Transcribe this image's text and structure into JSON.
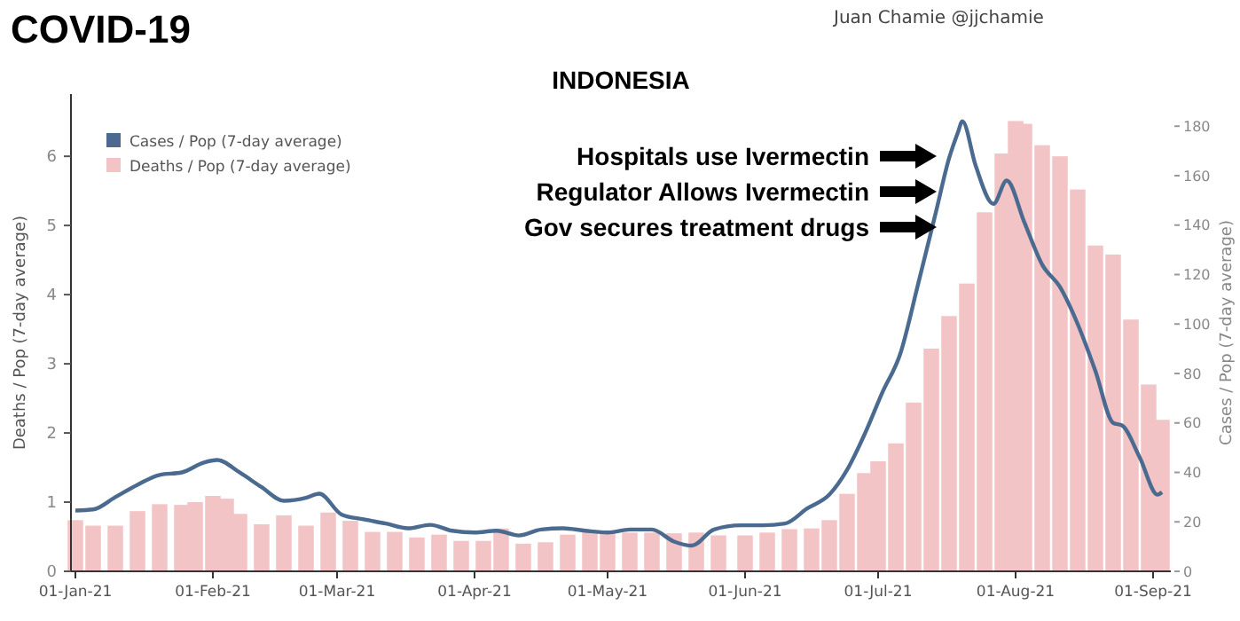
{
  "chart_data": {
    "type": "bar",
    "title": "COVID-19",
    "subtitle": "INDONESIA",
    "ylabel": "Deaths / Pop (7-day average)",
    "y2label": "Cases / Pop (7-day average)",
    "annotations": [
      "Juan Chamie @jjchamie",
      "Hospitals use Ivermectin",
      "Regulator Allows Ivermectin",
      "Gov secures treatment drugs"
    ],
    "xlim": [
      "2020-12-31",
      "2021-09-05"
    ],
    "xticks": [
      {
        "value": "2021-01-01",
        "label": "01-Jan-21"
      },
      {
        "value": "2021-02-01",
        "label": "01-Feb-21"
      },
      {
        "value": "2021-03-01",
        "label": "01-Mar-21"
      },
      {
        "value": "2021-04-01",
        "label": "01-Apr-21"
      },
      {
        "value": "2021-05-01",
        "label": "01-May-21"
      },
      {
        "value": "2021-06-01",
        "label": "01-Jun-21"
      },
      {
        "value": "2021-07-01",
        "label": "01-Jul-21"
      },
      {
        "value": "2021-08-01",
        "label": "01-Aug-21"
      },
      {
        "value": "2021-09-01",
        "label": "01-Sep-21"
      }
    ],
    "ylim": [
      0,
      6.9
    ],
    "yticks": [
      0,
      1,
      2,
      3,
      4,
      5,
      6
    ],
    "y2lim": [
      0,
      193
    ],
    "y2ticks": [
      0,
      20,
      40,
      60,
      80,
      100,
      120,
      140,
      160,
      180
    ],
    "legend": "top left",
    "grid": false,
    "series": [
      {
        "name": "Cases / Pop (7-day average)",
        "type": "line",
        "axis": "y2",
        "color": "#4a6a8f",
        "marker": "none",
        "line_style": "solid",
        "x": [
          "2021-01-01",
          "2021-01-05",
          "2021-01-10",
          "2021-01-15",
          "2021-01-20",
          "2021-01-25",
          "2021-01-30",
          "2021-02-02",
          "2021-02-07",
          "2021-02-12",
          "2021-02-17",
          "2021-02-22",
          "2021-02-25",
          "2021-03-02",
          "2021-03-07",
          "2021-03-12",
          "2021-03-17",
          "2021-03-22",
          "2021-03-27",
          "2021-04-01",
          "2021-04-06",
          "2021-04-11",
          "2021-04-16",
          "2021-04-21",
          "2021-04-26",
          "2021-05-01",
          "2021-05-06",
          "2021-05-11",
          "2021-05-16",
          "2021-05-20",
          "2021-05-25",
          "2021-05-31",
          "2021-06-05",
          "2021-06-10",
          "2021-06-15",
          "2021-06-20",
          "2021-06-24",
          "2021-06-28",
          "2021-07-02",
          "2021-07-06",
          "2021-07-10",
          "2021-07-14",
          "2021-07-17",
          "2021-07-19",
          "2021-07-20",
          "2021-07-23",
          "2021-07-27",
          "2021-07-30",
          "2021-08-03",
          "2021-08-07",
          "2021-08-11",
          "2021-08-15",
          "2021-08-19",
          "2021-08-23",
          "2021-08-25",
          "2021-08-29",
          "2021-09-02",
          "2021-09-03"
        ],
        "values": [
          24.6,
          25,
          30,
          35,
          39,
          40,
          44,
          45,
          40,
          34,
          28.5,
          29.7,
          31.4,
          23,
          21,
          19.3,
          17.4,
          18.8,
          16.4,
          15.7,
          16.4,
          14.5,
          16.9,
          17.4,
          16.4,
          15.7,
          16.9,
          16.9,
          12,
          10.4,
          16.9,
          18.6,
          18.6,
          19.3,
          25.4,
          31,
          41,
          55.6,
          72.5,
          88,
          116,
          145,
          167,
          177.5,
          182,
          164,
          148.6,
          158,
          141,
          124,
          115,
          100,
          81,
          60,
          59,
          46,
          31,
          32
        ]
      },
      {
        "name": "Deaths / Pop (7-day average)",
        "axis": "y",
        "color": "#f2c4c6",
        "x": [
          "2021-01-01",
          "2021-01-05",
          "2021-01-10",
          "2021-01-15",
          "2021-01-20",
          "2021-01-25",
          "2021-01-28",
          "2021-02-01",
          "2021-02-04",
          "2021-02-07",
          "2021-02-12",
          "2021-02-17",
          "2021-02-22",
          "2021-02-27",
          "2021-03-04",
          "2021-03-09",
          "2021-03-14",
          "2021-03-19",
          "2021-03-24",
          "2021-03-29",
          "2021-04-03",
          "2021-04-07",
          "2021-04-12",
          "2021-04-17",
          "2021-04-22",
          "2021-04-27",
          "2021-05-01",
          "2021-05-06",
          "2021-05-11",
          "2021-05-16",
          "2021-05-21",
          "2021-05-26",
          "2021-06-01",
          "2021-06-06",
          "2021-06-11",
          "2021-06-16",
          "2021-06-20",
          "2021-06-24",
          "2021-06-28",
          "2021-07-01",
          "2021-07-05",
          "2021-07-09",
          "2021-07-13",
          "2021-07-17",
          "2021-07-21",
          "2021-07-25",
          "2021-07-29",
          "2021-08-01",
          "2021-08-03",
          "2021-08-07",
          "2021-08-11",
          "2021-08-15",
          "2021-08-19",
          "2021-08-23",
          "2021-08-27",
          "2021-08-31",
          "2021-09-03"
        ],
        "values": [
          0.74,
          0.66,
          0.66,
          0.87,
          0.97,
          0.96,
          1.0,
          1.09,
          1.05,
          0.83,
          0.68,
          0.81,
          0.66,
          0.85,
          0.73,
          0.57,
          0.57,
          0.49,
          0.53,
          0.44,
          0.44,
          0.62,
          0.4,
          0.42,
          0.53,
          0.57,
          0.57,
          0.56,
          0.56,
          0.55,
          0.56,
          0.52,
          0.52,
          0.56,
          0.61,
          0.62,
          0.74,
          1.12,
          1.42,
          1.59,
          1.85,
          2.44,
          3.22,
          3.69,
          4.16,
          5.19,
          6.04,
          6.51,
          6.47,
          6.16,
          6.0,
          5.52,
          4.71,
          4.58,
          3.64,
          2.7,
          2.19
        ]
      }
    ]
  }
}
